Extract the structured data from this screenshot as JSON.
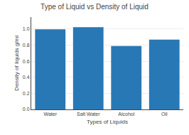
{
  "chart_data": {
    "type": "bar",
    "title": "Type of Liquid vs Density of Liquid",
    "xlabel": "Types of Liquids",
    "ylabel": "Density of liquids g/ml",
    "categories": [
      "Water",
      "Salt Water",
      "Alcohol",
      "Oil"
    ],
    "values": [
      0.997,
      1.025,
      0.789,
      0.87
    ],
    "color": "#2878b5",
    "ylim": [
      0,
      1.15
    ],
    "yticks": [
      {
        "value": 0,
        "label": "0.0"
      },
      0.2,
      0.4,
      0.6,
      0.8,
      {
        "value": 1.0,
        "label": "1.0"
      }
    ],
    "grid": true
  }
}
